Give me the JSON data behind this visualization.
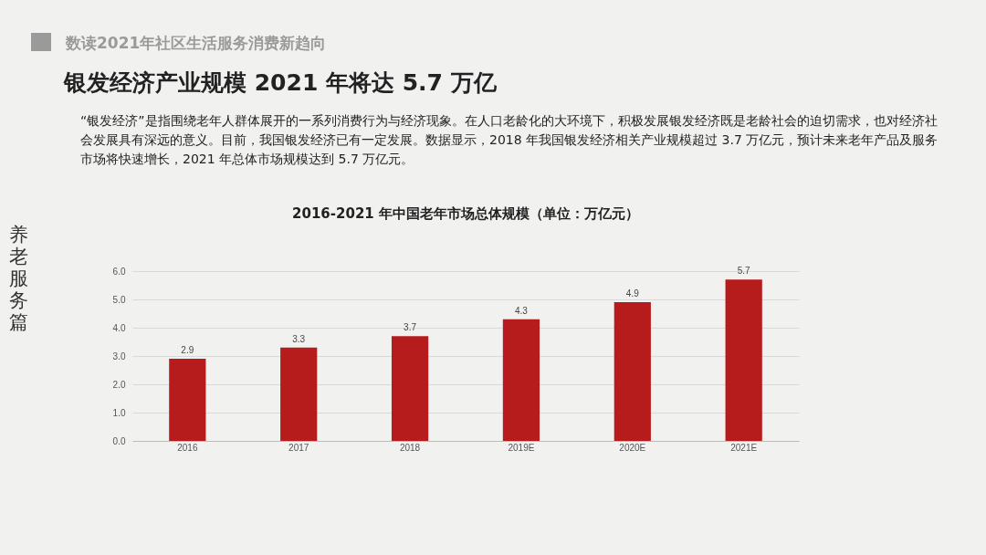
{
  "chart_data": {
    "type": "bar",
    "title": "2016-2021 年中国老年市场总体规模（单位：万亿元）",
    "subtitle": "银发经济产业规模 2021 年将达 5.7 万亿",
    "annotations": [
      "数读2021年社区生活服务消费新趋向",
      "“银发经济”是指围绕老年人群体展开的一系列消费行为与经济现象。在人口老龄化的大环境下，积极发展银发经济既是老龄社会的迫切需求，也对经济社会发展具有深远的意义。目前，我国银发经济已有一定发展。数据显示，2018 年我国银发经济相关产业规模超过 3.7 万亿元，预计未来老年产品及服务市场将快速增长，2021 年总体市场规模达到 5.7 万亿元。",
      "养老服务篇"
    ],
    "categories": [
      "2016",
      "2017",
      "2018",
      "2019E",
      "2020E",
      "2021E"
    ],
    "values": [
      2.9,
      3.3,
      3.7,
      4.3,
      4.9,
      5.7
    ],
    "color": "#b71c1c",
    "ylim": [
      0,
      6
    ],
    "yticks": [
      {
        "value": 0,
        "label": "0.0"
      },
      {
        "value": 1,
        "label": "1.0"
      },
      {
        "value": 2,
        "label": "2.0"
      },
      {
        "value": 3,
        "label": "3.0"
      },
      {
        "value": 4,
        "label": "4.0"
      },
      {
        "value": 5,
        "label": "5.0"
      },
      {
        "value": 6,
        "label": "6.0"
      }
    ],
    "grid": "y",
    "data_labels": true
  }
}
